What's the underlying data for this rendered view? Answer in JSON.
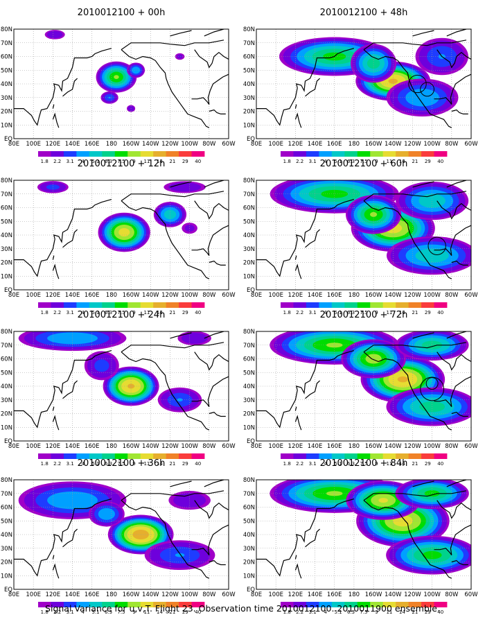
{
  "caption": "Signal Variance for u,v,T. Flight 23. Observation time 2010012100. 2010011900 ensemble.",
  "colorbar": {
    "levels": [
      "1.8",
      "2.2",
      "3.1",
      "4",
      "5.1",
      "6.3",
      "7.5",
      "9",
      "11",
      "14",
      "21",
      "29",
      "40"
    ],
    "colors": [
      "#a000c8",
      "#6e00dc",
      "#1e3cff",
      "#00a0ff",
      "#00c8c8",
      "#00d28c",
      "#00dc00",
      "#a0e632",
      "#e6dc32",
      "#e6af2d",
      "#f08228",
      "#fa3c3c",
      "#f00082"
    ]
  },
  "lon_labels": [
    "80E",
    "100E",
    "120E",
    "140E",
    "160E",
    "180",
    "160W",
    "140W",
    "120W",
    "100W",
    "80W",
    "60W"
  ],
  "lat_labels": [
    "80N",
    "70N",
    "60N",
    "50N",
    "40N",
    "30N",
    "20N",
    "10N",
    "EQ"
  ],
  "chart_data": [
    {
      "type": "heatmap",
      "title": "2010012100 + 00h",
      "lead": 0,
      "z_levels": [
        "1.8",
        "2.2",
        "3.1",
        "4",
        "5.1",
        "6.3",
        "7.5",
        "9",
        "11",
        "14",
        "21",
        "29",
        "40"
      ],
      "circles": [],
      "blobs": [
        {
          "lon": 185,
          "lat": 45,
          "rx": 22,
          "ry": 12,
          "peak": 9
        },
        {
          "lon": 178,
          "lat": 30,
          "rx": 10,
          "ry": 5,
          "peak": 4
        },
        {
          "lon": 205,
          "lat": 50,
          "rx": 10,
          "ry": 6,
          "peak": 5
        },
        {
          "lon": 122,
          "lat": 76,
          "rx": 12,
          "ry": 4,
          "peak": 3
        },
        {
          "lon": 200,
          "lat": 22,
          "rx": 5,
          "ry": 3,
          "peak": 3
        },
        {
          "lon": 250,
          "lat": 60,
          "rx": 6,
          "ry": 3,
          "peak": 2.5
        }
      ]
    },
    {
      "type": "heatmap",
      "title": "2010012100 + 12h",
      "lead": 12,
      "z_levels": [
        "1.8",
        "2.2",
        "3.1",
        "4",
        "5.1",
        "6.3",
        "7.5",
        "9",
        "11",
        "14",
        "21",
        "29",
        "40"
      ],
      "circles": [],
      "blobs": [
        {
          "lon": 193,
          "lat": 42,
          "rx": 28,
          "ry": 15,
          "peak": 12
        },
        {
          "lon": 240,
          "lat": 55,
          "rx": 18,
          "ry": 10,
          "peak": 6
        },
        {
          "lon": 120,
          "lat": 75,
          "rx": 18,
          "ry": 5,
          "peak": 3.5
        },
        {
          "lon": 255,
          "lat": 75,
          "rx": 25,
          "ry": 5,
          "peak": 3
        },
        {
          "lon": 260,
          "lat": 45,
          "rx": 10,
          "ry": 5,
          "peak": 2.5
        }
      ]
    },
    {
      "type": "heatmap",
      "title": "2010012100 + 24h",
      "lead": 24,
      "z_levels": [
        "1.8",
        "2.2",
        "3.1",
        "4",
        "5.1",
        "6.3",
        "7.5",
        "9",
        "11",
        "14",
        "21",
        "29",
        "40"
      ],
      "circles": [],
      "blobs": [
        {
          "lon": 200,
          "lat": 40,
          "rx": 30,
          "ry": 15,
          "peak": 14
        },
        {
          "lon": 140,
          "lat": 75,
          "rx": 60,
          "ry": 10,
          "peak": 5
        },
        {
          "lon": 250,
          "lat": 30,
          "rx": 25,
          "ry": 10,
          "peak": 4
        },
        {
          "lon": 170,
          "lat": 55,
          "rx": 20,
          "ry": 12,
          "peak": 3.5
        },
        {
          "lon": 265,
          "lat": 75,
          "rx": 20,
          "ry": 6,
          "peak": 3
        }
      ]
    },
    {
      "type": "heatmap",
      "title": "2010012100 + 36h",
      "lead": 36,
      "z_levels": [
        "1.8",
        "2.2",
        "3.1",
        "4",
        "5.1",
        "6.3",
        "7.5",
        "9",
        "11",
        "14",
        "21",
        "29",
        "40"
      ],
      "circles": [],
      "blobs": [
        {
          "lon": 210,
          "lat": 40,
          "rx": 35,
          "ry": 15,
          "peak": 16
        },
        {
          "lon": 140,
          "lat": 65,
          "rx": 60,
          "ry": 15,
          "peak": 5
        },
        {
          "lon": 250,
          "lat": 25,
          "rx": 40,
          "ry": 12,
          "peak": 4
        },
        {
          "lon": 175,
          "lat": 55,
          "rx": 20,
          "ry": 10,
          "peak": 5
        },
        {
          "lon": 260,
          "lat": 65,
          "rx": 25,
          "ry": 8,
          "peak": 3
        }
      ]
    },
    {
      "type": "heatmap",
      "title": "2010012100 + 48h",
      "lead": 48,
      "z_levels": [
        "1.8",
        "2.2",
        "3.1",
        "4",
        "5.1",
        "6.3",
        "7.5",
        "9",
        "11",
        "14",
        "21",
        "29",
        "40"
      ],
      "circles": [
        {
          "lon": 245,
          "lat": 40,
          "r": 9
        },
        {
          "lon": 255,
          "lat": 36,
          "r": 7
        }
      ],
      "blobs": [
        {
          "lon": 220,
          "lat": 42,
          "rx": 40,
          "ry": 15,
          "peak": 14
        },
        {
          "lon": 160,
          "lat": 60,
          "rx": 60,
          "ry": 15,
          "peak": 8
        },
        {
          "lon": 250,
          "lat": 30,
          "rx": 40,
          "ry": 15,
          "peak": 5
        },
        {
          "lon": 200,
          "lat": 55,
          "rx": 25,
          "ry": 15,
          "peak": 7
        },
        {
          "lon": 270,
          "lat": 60,
          "rx": 30,
          "ry": 15,
          "peak": 4
        }
      ]
    },
    {
      "type": "heatmap",
      "title": "2010012100 + 60h",
      "lead": 60,
      "z_levels": [
        "1.8",
        "2.2",
        "3.1",
        "4",
        "5.1",
        "6.3",
        "7.5",
        "9",
        "11",
        "14",
        "21",
        "29",
        "40"
      ],
      "circles": [
        {
          "lon": 265,
          "lat": 32,
          "r": 9
        }
      ],
      "blobs": [
        {
          "lon": 220,
          "lat": 45,
          "rx": 45,
          "ry": 18,
          "peak": 12
        },
        {
          "lon": 160,
          "lat": 70,
          "rx": 70,
          "ry": 15,
          "peak": 8
        },
        {
          "lon": 260,
          "lat": 25,
          "rx": 50,
          "ry": 15,
          "peak": 6
        },
        {
          "lon": 200,
          "lat": 55,
          "rx": 30,
          "ry": 15,
          "peak": 9
        },
        {
          "lon": 260,
          "lat": 65,
          "rx": 40,
          "ry": 15,
          "peak": 6
        }
      ]
    },
    {
      "type": "heatmap",
      "title": "2010012100 + 72h",
      "lead": 72,
      "z_levels": [
        "1.8",
        "2.2",
        "3.1",
        "4",
        "5.1",
        "6.3",
        "7.5",
        "9",
        "11",
        "14",
        "21",
        "29",
        "40"
      ],
      "circles": [
        {
          "lon": 260,
          "lat": 42,
          "r": 6
        },
        {
          "lon": 260,
          "lat": 38,
          "r": 12
        }
      ],
      "blobs": [
        {
          "lon": 230,
          "lat": 45,
          "rx": 45,
          "ry": 18,
          "peak": 14
        },
        {
          "lon": 160,
          "lat": 70,
          "rx": 70,
          "ry": 15,
          "peak": 9
        },
        {
          "lon": 260,
          "lat": 25,
          "rx": 50,
          "ry": 15,
          "peak": 7
        },
        {
          "lon": 200,
          "lat": 60,
          "rx": 35,
          "ry": 15,
          "peak": 10
        },
        {
          "lon": 260,
          "lat": 70,
          "rx": 40,
          "ry": 12,
          "peak": 7
        }
      ]
    },
    {
      "type": "heatmap",
      "title": "2010012100 + 84h",
      "lead": 84,
      "z_levels": [
        "1.8",
        "2.2",
        "3.1",
        "4",
        "5.1",
        "6.3",
        "7.5",
        "9",
        "11",
        "14",
        "21",
        "29",
        "40"
      ],
      "circles": [],
      "blobs": [
        {
          "lon": 230,
          "lat": 50,
          "rx": 50,
          "ry": 20,
          "peak": 12
        },
        {
          "lon": 160,
          "lat": 70,
          "rx": 70,
          "ry": 15,
          "peak": 9
        },
        {
          "lon": 260,
          "lat": 25,
          "rx": 50,
          "ry": 15,
          "peak": 8
        },
        {
          "lon": 210,
          "lat": 65,
          "rx": 40,
          "ry": 15,
          "peak": 11
        },
        {
          "lon": 260,
          "lat": 70,
          "rx": 40,
          "ry": 12,
          "peak": 8
        }
      ]
    }
  ]
}
